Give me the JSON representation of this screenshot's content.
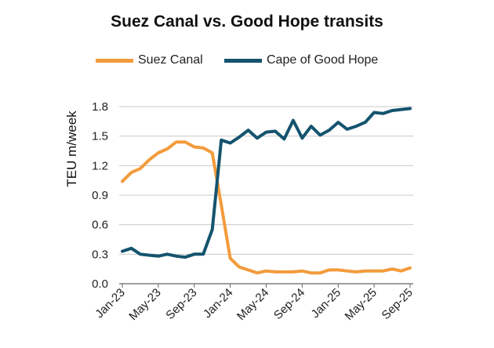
{
  "chart_data": {
    "type": "line",
    "title": "Suez Canal vs. Good Hope transits",
    "ylabel": "TEU m/week",
    "xlabel": "",
    "ylim": [
      0,
      1.8
    ],
    "yticks": [
      "0.0",
      "0.3",
      "0.6",
      "0.9",
      "1.2",
      "1.5",
      "1.8"
    ],
    "xticks": [
      "Jan-23",
      "May-23",
      "Sep-23",
      "Jan-24",
      "May-24",
      "Sep-24",
      "Jan-25",
      "May-25",
      "Sep-25"
    ],
    "grid": "horizontal",
    "legend_position": "top",
    "x_start": "Jan-23",
    "x_end": "Sep-25",
    "series": [
      {
        "name": "Suez Canal",
        "color": "#F39B3C",
        "x": [
          "Jan-23",
          "Feb-23",
          "Mar-23",
          "Apr-23",
          "May-23",
          "Jun-23",
          "Jul-23",
          "Aug-23",
          "Sep-23",
          "Oct-23",
          "Nov-23",
          "Dec-23",
          "Jan-24",
          "Feb-24",
          "Mar-24",
          "Apr-24",
          "May-24",
          "Jun-24",
          "Jul-24",
          "Aug-24",
          "Sep-24",
          "Oct-24",
          "Nov-24",
          "Dec-24",
          "Jan-25",
          "Feb-25",
          "Mar-25",
          "Apr-25",
          "May-25",
          "Jun-25",
          "Jul-25",
          "Aug-25",
          "Sep-25"
        ],
        "values": [
          1.04,
          1.13,
          1.17,
          1.26,
          1.33,
          1.37,
          1.44,
          1.44,
          1.39,
          1.38,
          1.33,
          0.8,
          0.26,
          0.17,
          0.14,
          0.11,
          0.13,
          0.12,
          0.12,
          0.12,
          0.13,
          0.11,
          0.11,
          0.14,
          0.14,
          0.13,
          0.12,
          0.13,
          0.13,
          0.13,
          0.15,
          0.13,
          0.16
        ]
      },
      {
        "name": "Cape of Good Hope",
        "color": "#14536E",
        "x": [
          "Jan-23",
          "Feb-23",
          "Mar-23",
          "Apr-23",
          "May-23",
          "Jun-23",
          "Jul-23",
          "Aug-23",
          "Sep-23",
          "Oct-23",
          "Nov-23",
          "Dec-23",
          "Jan-24",
          "Feb-24",
          "Mar-24",
          "Apr-24",
          "May-24",
          "Jun-24",
          "Jul-24",
          "Aug-24",
          "Sep-24",
          "Oct-24",
          "Nov-24",
          "Dec-24",
          "Jan-25",
          "Feb-25",
          "Mar-25",
          "Apr-25",
          "May-25",
          "Jun-25",
          "Jul-25",
          "Aug-25",
          "Sep-25"
        ],
        "values": [
          0.33,
          0.36,
          0.3,
          0.29,
          0.28,
          0.3,
          0.28,
          0.27,
          0.3,
          0.3,
          0.55,
          1.46,
          1.43,
          1.49,
          1.56,
          1.48,
          1.54,
          1.55,
          1.47,
          1.66,
          1.48,
          1.6,
          1.51,
          1.56,
          1.64,
          1.57,
          1.6,
          1.64,
          1.74,
          1.73,
          1.76,
          1.77,
          1.78
        ]
      }
    ]
  }
}
